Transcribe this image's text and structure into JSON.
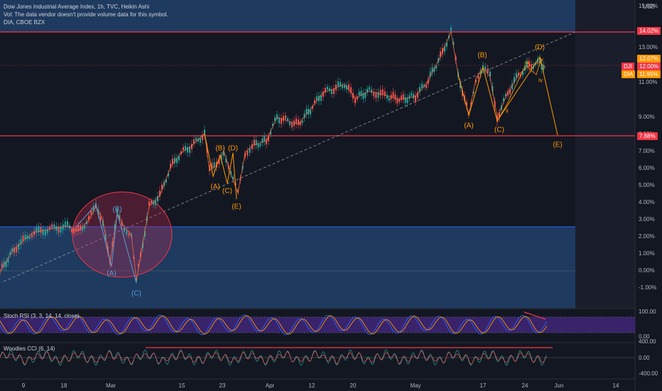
{
  "legend": {
    "title": "Dow Jones Industrial Average Index, 1h, TVC, Heikin Ashi",
    "volume_note": "Vol: The data vendor doesn't provide volume data for this symbol.",
    "compare": "DIA, CBOE BZX",
    "stoch_rsi": "Stoch RSI (3, 3, 14, 14, close)",
    "woodies": "Woodies CCI (6, 14)"
  },
  "price_axis": {
    "currency": "USD",
    "ticks": [
      "15.00%",
      "13.00%",
      "12.00%",
      "11.00%",
      "9.00%",
      "8.00%",
      "7.00%",
      "6.00%",
      "5.00%",
      "4.00%",
      "3.00%",
      "2.00%",
      "1.00%",
      "0.00%",
      "-1.00%"
    ],
    "tags": {
      "upper_line": "14.02%",
      "current_high": "12.07%",
      "dji_sym": "DJI",
      "dji_val": "12.00%",
      "dia_sym": "DIA",
      "dia_val": "11.95%",
      "lower_line": "7.88%"
    }
  },
  "stoch_axis": [
    "100.00",
    "0.00"
  ],
  "cci_axis": [
    "400.00",
    "0.00",
    "-400.00"
  ],
  "time_axis": [
    "9",
    "18",
    "Mar",
    "15",
    "23",
    "Apr",
    "12",
    "20",
    "May",
    "17",
    "24",
    "Jun",
    "14"
  ],
  "waves": {
    "left": [
      "(B)",
      "(A)",
      "(C)"
    ],
    "mid": [
      "(B)",
      "(D)",
      "(A)",
      "(C)",
      "(E)"
    ],
    "right": [
      "(B)",
      "(A)",
      "(C)",
      "(D)",
      "(E)"
    ],
    "roman": [
      "ii",
      "iii",
      "iv",
      "v"
    ]
  },
  "colors": {
    "background": "#131722",
    "blue_zone": "#1e3a5f",
    "upper_zone": "#1e3a5f",
    "red_line": "#f23645",
    "blue_line": "#2962ff",
    "orange": "#ff9800",
    "wave_blue": "#5b9bd5",
    "stoch_band": "#4a2a8a",
    "candle_up": "#26a69a",
    "candle_down": "#ef5350"
  }
}
